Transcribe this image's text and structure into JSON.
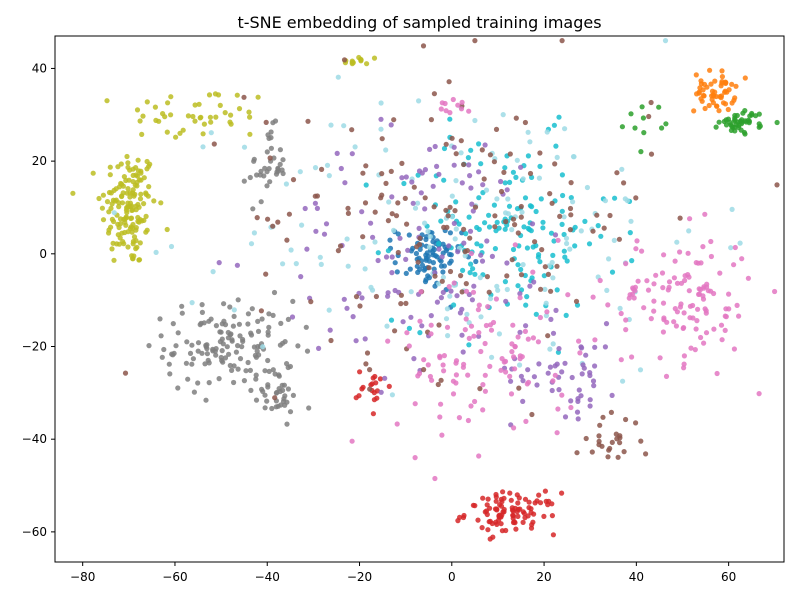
{
  "chart_data": {
    "type": "scatter",
    "title": "t-SNE embedding of sampled training images",
    "xlabel": "",
    "ylabel": "",
    "xlim": [
      -86,
      72
    ],
    "ylim": [
      -66.5,
      47
    ],
    "grid": false,
    "legend": "none",
    "x_ticks": [
      -80,
      -60,
      -40,
      -20,
      0,
      20,
      40,
      60
    ],
    "y_ticks": [
      -60,
      -40,
      -20,
      0,
      20,
      40
    ],
    "x_tick_labels": [
      "−80",
      "−60",
      "−40",
      "−20",
      "0",
      "20",
      "40",
      "60"
    ],
    "y_tick_labels": [
      "−60",
      "−40",
      "−20",
      "0",
      "20",
      "40"
    ],
    "clusters": [
      {
        "color": "#bcbd22",
        "regions": [
          {
            "cx": -70,
            "cy": 10,
            "sx": 3.0,
            "sy": 6.5,
            "n": 150
          },
          {
            "cx": -55,
            "cy": 30,
            "sx": 8.0,
            "sy": 3.0,
            "n": 45
          },
          {
            "cx": -20,
            "cy": 41.5,
            "sx": 2.0,
            "sy": 0.6,
            "n": 12
          }
        ]
      },
      {
        "color": "#7f7f7f",
        "regions": [
          {
            "cx": -40,
            "cy": 19,
            "sx": 2.0,
            "sy": 4.0,
            "n": 35
          },
          {
            "cx": -48,
            "cy": -20,
            "sx": 7.0,
            "sy": 5.0,
            "n": 140
          },
          {
            "cx": -38,
            "cy": -31,
            "sx": 2.5,
            "sy": 2.0,
            "n": 30
          }
        ]
      },
      {
        "color": "#d62728",
        "regions": [
          {
            "cx": 13,
            "cy": -56,
            "sx": 5.0,
            "sy": 2.2,
            "n": 95
          },
          {
            "cx": -17,
            "cy": -29,
            "sx": 1.8,
            "sy": 2.0,
            "n": 18
          }
        ]
      },
      {
        "color": "#ff7f0e",
        "regions": [
          {
            "cx": 57,
            "cy": 35,
            "sx": 2.2,
            "sy": 2.2,
            "n": 55
          }
        ]
      },
      {
        "color": "#2ca02c",
        "regions": [
          {
            "cx": 63,
            "cy": 28.5,
            "sx": 2.5,
            "sy": 1.2,
            "n": 45
          },
          {
            "cx": 42,
            "cy": 29,
            "sx": 2.0,
            "sy": 1.8,
            "n": 10
          }
        ]
      },
      {
        "color": "#1f77b4",
        "regions": [
          {
            "cx": -5,
            "cy": -1,
            "sx": 3.5,
            "sy": 3.5,
            "n": 85
          }
        ]
      },
      {
        "color": "#17becf",
        "regions": [
          {
            "cx": 12,
            "cy": 5,
            "sx": 12.0,
            "sy": 10.0,
            "n": 150
          }
        ]
      },
      {
        "color": "#9edae5",
        "regions": [
          {
            "cx": 5,
            "cy": 5,
            "sx": 25.0,
            "sy": 16.0,
            "n": 150
          }
        ]
      },
      {
        "color": "#9467bd",
        "regions": [
          {
            "cx": -5,
            "cy": 0,
            "sx": 17.0,
            "sy": 14.0,
            "n": 120
          },
          {
            "cx": 25,
            "cy": -25,
            "sx": 6.0,
            "sy": 5.0,
            "n": 50
          }
        ]
      },
      {
        "color": "#8c564b",
        "regions": [
          {
            "cx": 0,
            "cy": 8,
            "sx": 22.0,
            "sy": 16.0,
            "n": 160
          },
          {
            "cx": 34,
            "cy": -40,
            "sx": 3.5,
            "sy": 2.5,
            "n": 25
          }
        ]
      },
      {
        "color": "#e377c2",
        "regions": [
          {
            "cx": 50,
            "cy": -10,
            "sx": 8.0,
            "sy": 7.0,
            "n": 120
          },
          {
            "cx": 8,
            "cy": -22,
            "sx": 10.0,
            "sy": 10.0,
            "n": 110
          },
          {
            "cx": 0,
            "cy": 32,
            "sx": 2.0,
            "sy": 1.0,
            "n": 10
          }
        ]
      }
    ]
  }
}
